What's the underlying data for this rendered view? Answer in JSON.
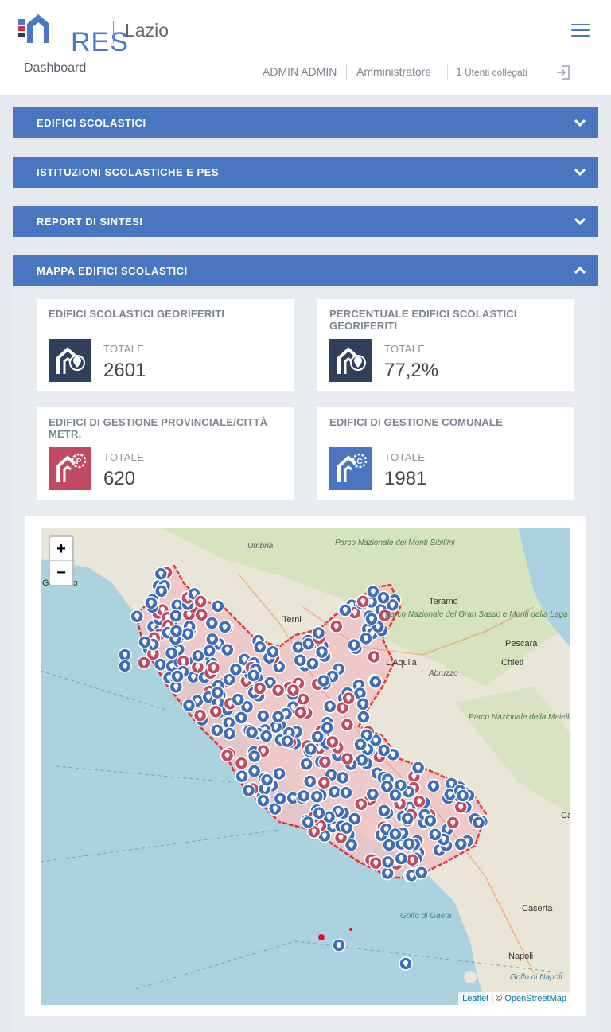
{
  "header": {
    "logo_text": "RES",
    "region": "Lazio",
    "page": "Dashboard",
    "user": "ADMIN ADMIN",
    "role": "Amministratore",
    "users_count": "1",
    "users_label": "Utenti collegati"
  },
  "panels": [
    {
      "title": "EDIFICI SCOLASTICI",
      "state": "collapsed"
    },
    {
      "title": "ISTITUZIONI SCOLASTICHE E PES",
      "state": "collapsed"
    },
    {
      "title": "REPORT DI SINTESI",
      "state": "collapsed"
    },
    {
      "title": "MAPPA EDIFICI SCOLASTICI",
      "state": "expanded"
    }
  ],
  "cards": [
    {
      "title": "EDIFICI SCOLASTICI GEORIFERITI",
      "label": "TOTALE",
      "value": "2601",
      "icon_color": "#2f3f5c",
      "icon": "school-location-icon"
    },
    {
      "title": "PERCENTUALE EDIFICI SCOLASTICI GEORIFERITI",
      "label": "TOTALE",
      "value": "77,2%",
      "icon_color": "#2f3f5c",
      "icon": "school-location-icon"
    },
    {
      "title": "EDIFICI DI GESTIONE PROVINCIALE/CITTÀ METR.",
      "label": "TOTALE",
      "value": "620",
      "icon_color": "#c04a61",
      "icon": "school-provincial-icon"
    },
    {
      "title": "EDIFICI DI GESTIONE COMUNALE",
      "label": "TOTALE",
      "value": "1981",
      "icon_color": "#4a76c0",
      "icon": "school-municipal-icon"
    }
  ],
  "map": {
    "zoom_in": "+",
    "zoom_out": "−",
    "attribution_leaflet": "Leaflet",
    "attribution_sep": " | © ",
    "attribution_osm": "OpenStreetMap",
    "labels": {
      "umbria": "Umbria",
      "parco_sibillini": "Parco Nazionale dei Monti Sibillini",
      "teramo": "Teramo",
      "parco_gran_sasso": "Parco Nazionale del Gran Sasso e Monti della Laga",
      "pescara": "Pescara",
      "chieti": "Chieti",
      "terni": "Terni",
      "laquila": "L'Aquila",
      "abruzzo": "Abruzzo",
      "parco_maiella": "Parco Nazionale della Maiella",
      "grosseto": "Grosseto",
      "caserta": "Caserta",
      "golfo_gaeta": "Golfo di Gaeta",
      "napoli": "Napoli",
      "golfo_napoli": "Golfo di Napoli",
      "cam": "Cam"
    },
    "marker_colors": {
      "comunale": "#3f6db8",
      "provinciale": "#c04a61"
    },
    "region_border": "#e0101a"
  }
}
